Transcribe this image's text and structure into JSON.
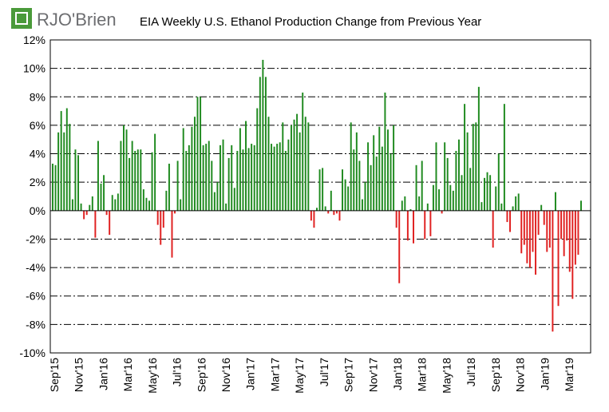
{
  "logo": {
    "text": "RJO'Brien"
  },
  "colors": {
    "positive": "#1f8a1f",
    "negative": "#e02020",
    "grid": "#000000",
    "logo_green": "#4a9a3a"
  },
  "chart_data": {
    "type": "bar",
    "title": "EIA Weekly U.S. Ethanol Production Change from Previous Year",
    "xlabel": "",
    "ylabel": "",
    "ylim": [
      -10,
      12
    ],
    "y_ticks": [
      -10,
      -8,
      -6,
      -4,
      -2,
      0,
      2,
      4,
      6,
      8,
      10,
      12
    ],
    "y_tick_labels": [
      "-10%",
      "-8%",
      "-6%",
      "-4%",
      "-2%",
      "0%",
      "2%",
      "4%",
      "6%",
      "8%",
      "10%",
      "12%"
    ],
    "grid": "horizontal dash-dot",
    "legend": "none",
    "x_tick_labels": [
      "Sep'15",
      "Nov'15",
      "Jan'16",
      "Mar'16",
      "May'16",
      "Jul'16",
      "Sep'16",
      "Nov'16",
      "Jan'17",
      "Mar'17",
      "May'17",
      "Jul'17",
      "Sep'17",
      "Nov'17",
      "Jan'18",
      "Mar'18",
      "May'18",
      "Jul'18",
      "Sep'18",
      "Nov'18",
      "Jan'19",
      "Mar'19"
    ],
    "values": [
      3.3,
      3.2,
      5.5,
      7.0,
      5.5,
      7.2,
      6.1,
      0.8,
      4.3,
      3.9,
      0.5,
      -0.6,
      -0.3,
      0.4,
      1.0,
      -1.9,
      4.9,
      1.9,
      2.5,
      -0.3,
      -1.7,
      1.1,
      0.8,
      1.2,
      4.9,
      6.0,
      5.7,
      3.7,
      4.9,
      4.2,
      4.3,
      4.3,
      1.5,
      0.9,
      0.7,
      4.1,
      5.4,
      -1.0,
      -2.4,
      -1.2,
      1.4,
      3.3,
      -3.3,
      -0.2,
      3.5,
      0.8,
      5.8,
      4.2,
      4.6,
      5.9,
      6.6,
      8.0,
      8.0,
      4.6,
      4.7,
      4.9,
      3.5,
      1.3,
      2.0,
      4.6,
      5.0,
      0.5,
      3.7,
      4.6,
      1.6,
      4.2,
      5.8,
      4.3,
      6.3,
      4.4,
      4.7,
      4.6,
      7.2,
      9.4,
      10.6,
      9.4,
      6.6,
      4.7,
      4.5,
      4.7,
      4.8,
      6.2,
      4.2,
      5.0,
      6.0,
      6.4,
      6.8,
      5.5,
      8.3,
      6.6,
      6.2,
      -0.7,
      -1.2,
      0.2,
      2.9,
      3.0,
      0.3,
      -0.2,
      1.4,
      -0.3,
      -0.2,
      -0.7,
      2.9,
      2.2,
      1.7,
      6.2,
      4.3,
      5.5,
      3.5,
      0.8,
      2.0,
      4.8,
      3.2,
      5.3,
      3.8,
      5.9,
      4.5,
      8.3,
      5.7,
      4.0,
      6.0,
      -1.2,
      -5.1,
      0.7,
      1.0,
      -2.1,
      0.1,
      -2.3,
      3.2,
      1.0,
      3.5,
      -2.0,
      0.5,
      -1.8,
      1.8,
      4.8,
      1.5,
      -0.2,
      4.8,
      3.7,
      1.8,
      1.4,
      4.2,
      5.0,
      2.5,
      7.5,
      5.5,
      3.0,
      6.1,
      6.2,
      8.7,
      0.6,
      2.3,
      2.7,
      2.5,
      -2.6,
      1.7,
      4.0,
      0.5,
      7.5,
      -0.8,
      -1.5,
      0.3,
      1.0,
      1.2,
      -3.0,
      -2.4,
      -3.7,
      -4.0,
      -2.9,
      -4.5,
      -1.7,
      0.4,
      -1.0,
      -2.9,
      -2.6,
      -8.5,
      1.3,
      -6.7,
      -2.0,
      -3.2,
      -2.1,
      -4.3,
      -6.2,
      -3.8,
      -3.1,
      0.7
    ]
  }
}
